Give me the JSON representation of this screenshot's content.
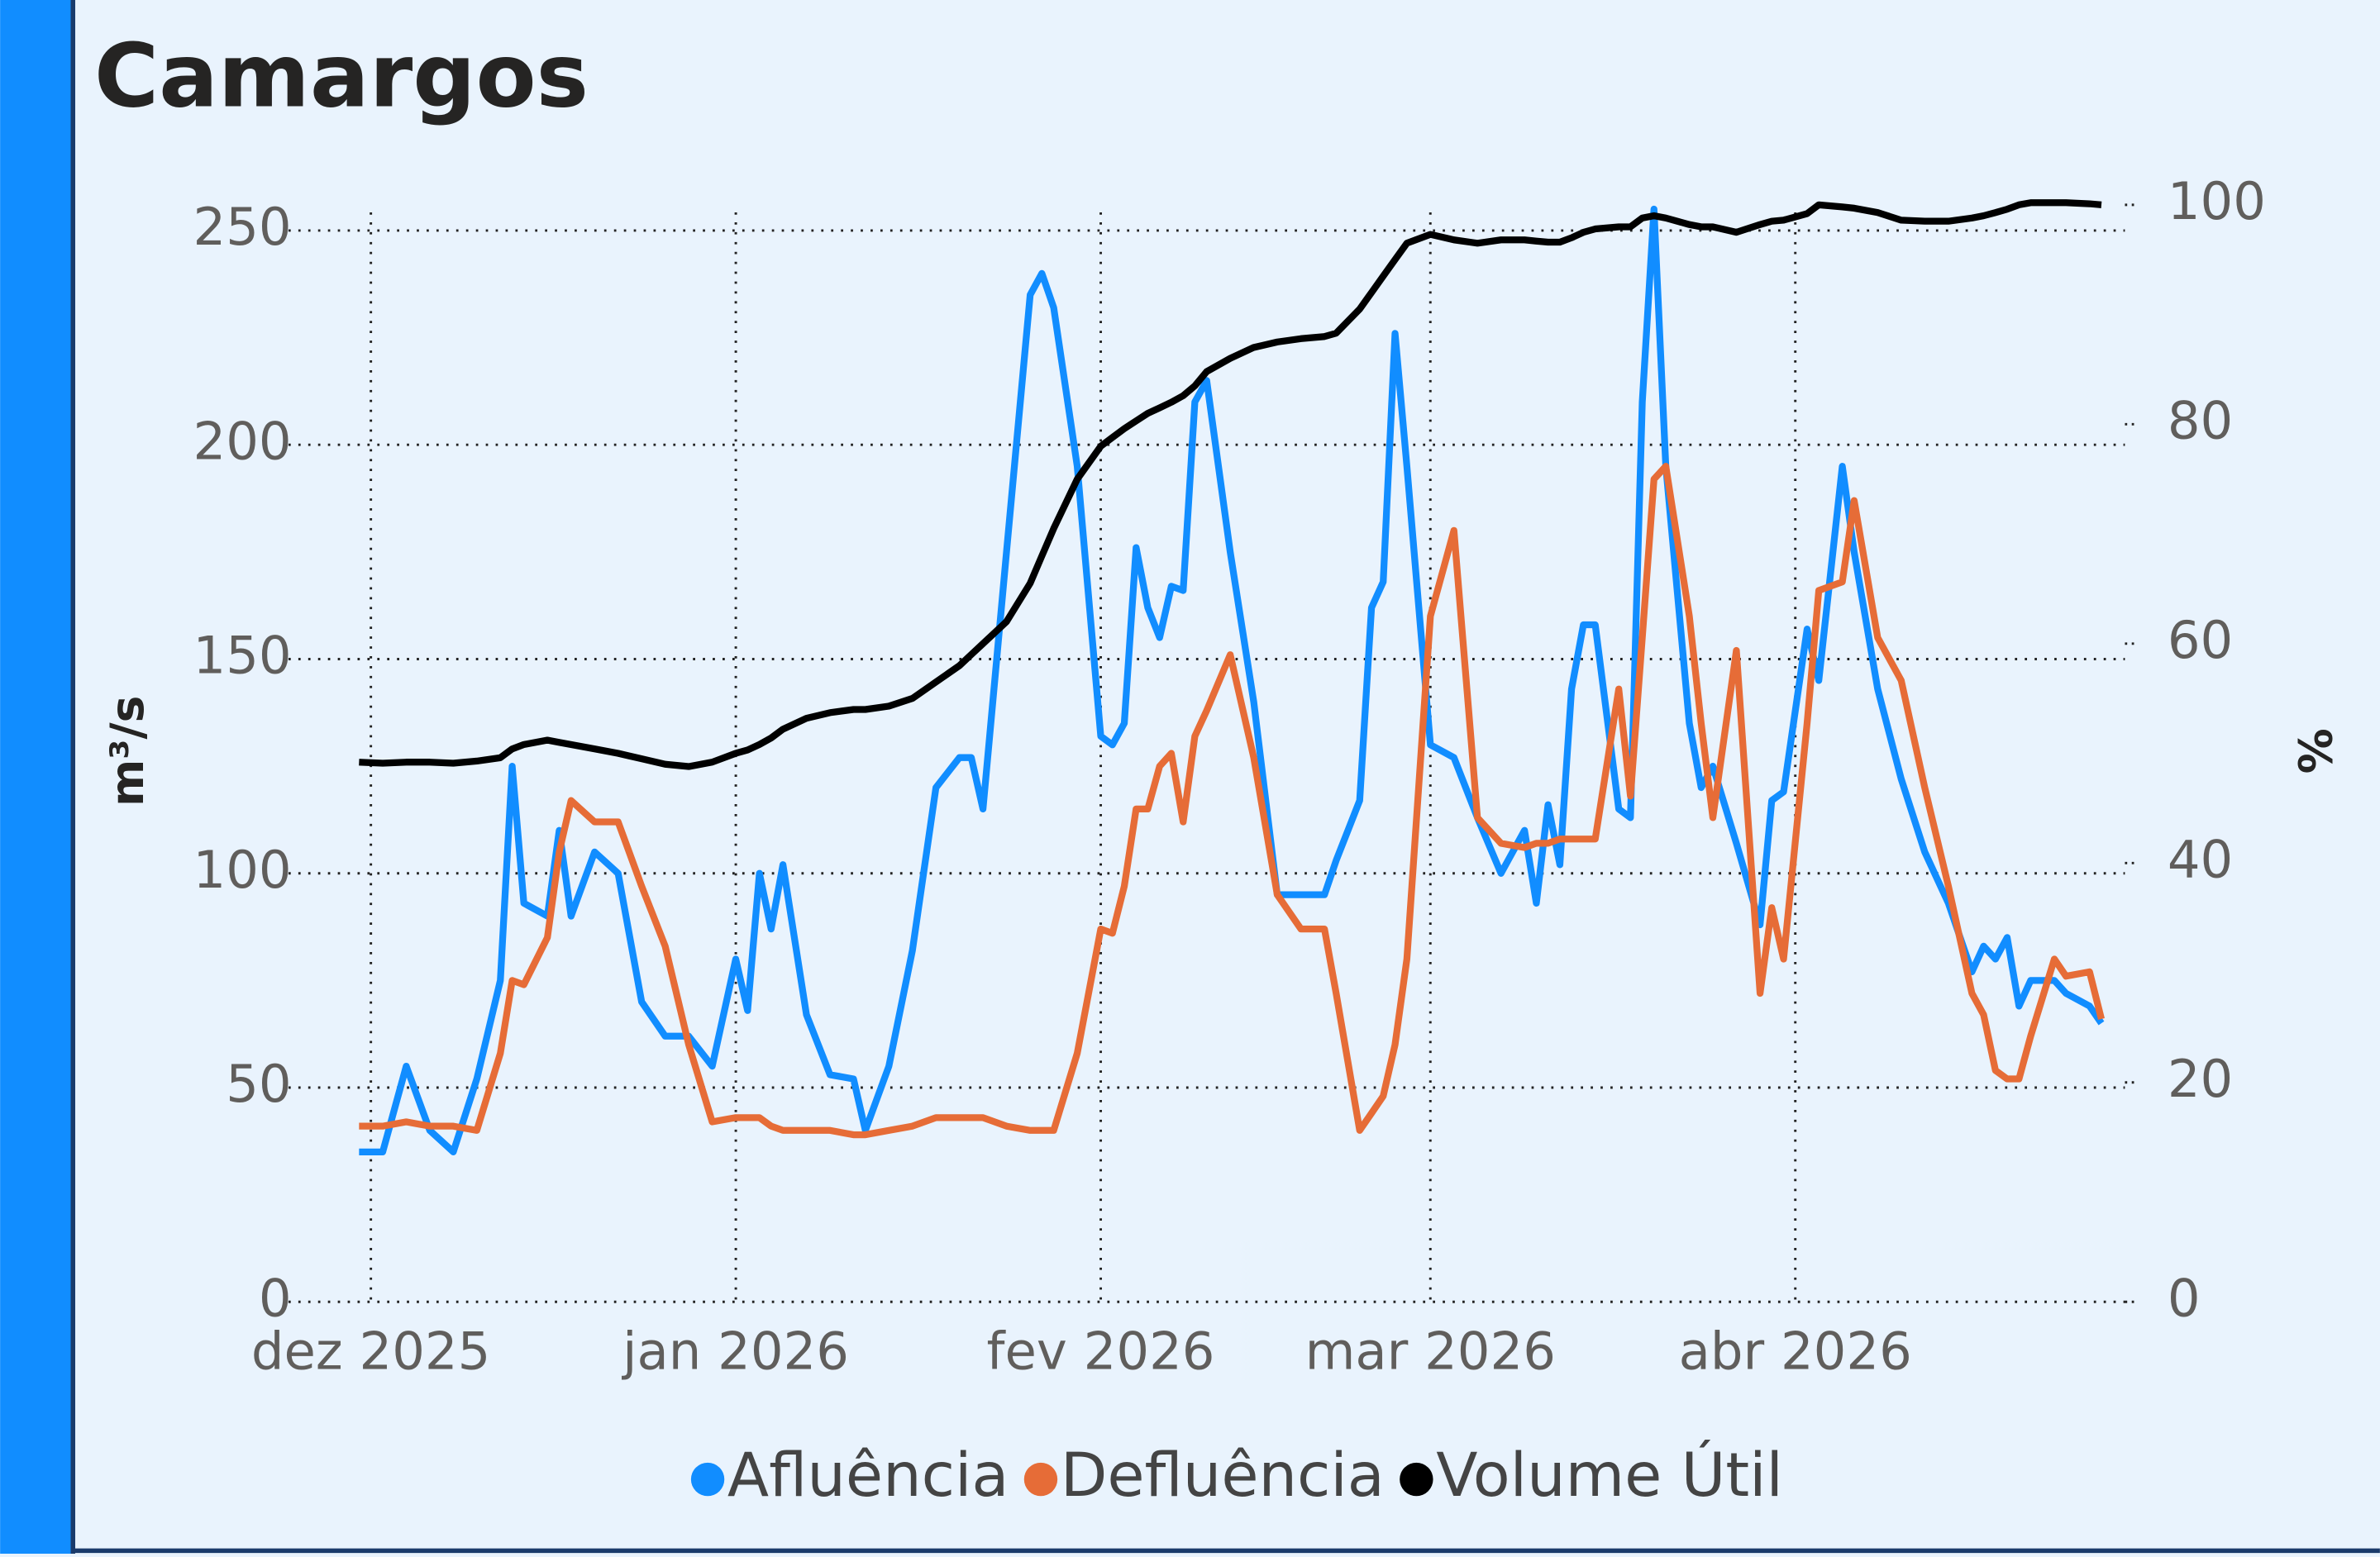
{
  "chart_data": {
    "type": "line",
    "title": "Camargos",
    "y_label": "m³/s",
    "y2_label": "%",
    "x": [
      -1,
      1,
      3,
      5,
      7,
      9,
      11,
      12,
      13,
      15,
      16,
      17,
      19,
      21,
      23,
      25,
      27,
      29,
      31,
      32,
      33,
      34,
      35,
      37,
      39,
      41,
      42,
      44,
      46,
      48,
      50,
      51,
      52,
      54,
      56,
      57,
      58,
      60,
      62,
      63,
      64,
      65,
      66,
      67,
      68,
      69,
      70,
      71,
      73,
      75,
      77,
      79,
      81,
      82,
      84,
      85,
      86,
      87,
      88,
      90,
      92,
      94,
      96,
      98,
      99,
      100,
      101,
      102,
      103,
      104,
      106,
      107,
      108,
      109,
      110,
      112,
      113,
      114,
      116,
      118,
      119,
      120,
      122,
      123,
      125,
      126,
      128,
      130,
      132,
      134,
      136,
      137,
      138,
      139,
      140,
      141,
      143,
      144,
      146,
      147
    ],
    "xlim": [
      -7,
      149
    ],
    "xticks": [
      {
        "value": 0,
        "label": "dez 2025"
      },
      {
        "value": 31,
        "label": "jan 2026"
      },
      {
        "value": 62,
        "label": "fev 2026"
      },
      {
        "value": 90,
        "label": "mar 2026"
      },
      {
        "value": 121,
        "label": "abr 2026"
      }
    ],
    "ylim": [
      0,
      256
    ],
    "yticks": [
      0,
      50,
      100,
      150,
      200,
      250
    ],
    "y2lim": [
      0,
      100
    ],
    "y2ticks": [
      0,
      20,
      40,
      60,
      80,
      100
    ],
    "grid": true,
    "legend": "bottom",
    "series": [
      {
        "name": "Afluência",
        "color": "#118dff",
        "values": [
          35,
          35,
          55,
          40,
          35,
          52,
          75,
          125,
          93,
          90,
          110,
          90,
          105,
          100,
          70,
          62,
          62,
          55,
          80,
          68,
          100,
          87,
          102,
          67,
          53,
          52,
          40,
          55,
          82,
          120,
          127,
          127,
          115,
          175,
          235,
          240,
          232,
          195,
          132,
          130,
          135,
          176,
          162,
          155,
          167,
          166,
          210,
          215,
          175,
          140,
          95,
          95,
          95,
          103,
          117,
          162,
          168,
          226,
          195,
          130,
          127,
          113,
          100,
          110,
          93,
          116,
          102,
          143,
          158,
          158,
          115,
          113,
          210,
          255,
          195,
          135,
          120,
          125,
          107,
          88,
          117,
          119,
          157,
          145,
          195,
          175,
          143,
          122,
          105,
          93,
          77,
          83,
          80,
          85,
          69,
          75,
          75,
          72,
          69,
          65
        ]
      },
      {
        "name": "Defluência",
        "color": "#e66c37",
        "values": [
          41,
          41,
          42,
          41,
          41,
          40,
          58,
          75,
          74,
          85,
          105,
          117,
          112,
          112,
          97,
          83,
          60,
          42,
          43,
          43,
          43,
          41,
          40,
          40,
          40,
          39,
          39,
          40,
          41,
          43,
          43,
          43,
          43,
          41,
          40,
          40,
          40,
          58,
          87,
          86,
          97,
          115,
          115,
          125,
          128,
          112,
          132,
          138,
          151,
          127,
          95,
          87,
          87,
          72,
          40,
          44,
          48,
          60,
          80,
          160,
          180,
          113,
          107,
          106,
          107,
          107,
          108,
          108,
          108,
          108,
          143,
          118,
          155,
          192,
          195,
          160,
          135,
          113,
          152,
          72,
          92,
          80,
          135,
          166,
          168,
          187,
          155,
          145,
          120,
          97,
          72,
          67,
          54,
          52,
          52,
          62,
          80,
          76,
          77,
          66
        ]
      },
      {
        "name": "Volume Útil",
        "color": "#000000",
        "axis": "y2",
        "values": [
          49.2,
          49.1,
          49.2,
          49.2,
          49.1,
          49.3,
          49.6,
          50.4,
          50.8,
          51.2,
          51,
          50.8,
          50.4,
          50,
          49.5,
          49,
          48.8,
          49.2,
          50,
          50.3,
          50.8,
          51.4,
          52.2,
          53.2,
          53.7,
          54,
          54,
          54.3,
          55,
          56.5,
          58,
          59,
          60,
          62,
          65.5,
          68,
          70.5,
          75,
          78,
          78.8,
          79.6,
          80.3,
          81,
          81.5,
          82,
          82.6,
          83.5,
          84.8,
          86,
          87,
          87.5,
          87.8,
          88,
          88.3,
          90.5,
          92,
          93.5,
          95,
          96.5,
          97.3,
          96.8,
          96.5,
          96.8,
          96.8,
          96.7,
          96.6,
          96.6,
          97,
          97.5,
          97.8,
          98,
          98,
          98.8,
          99,
          98.8,
          98.2,
          98,
          98,
          97.5,
          98.2,
          98.5,
          98.6,
          99.2,
          100,
          99.8,
          99.7,
          99.3,
          98.6,
          98.5,
          98.5,
          98.8,
          99,
          99.3,
          99.6,
          100,
          100.2,
          100.2,
          100.2,
          100.1,
          100
        ]
      }
    ]
  }
}
